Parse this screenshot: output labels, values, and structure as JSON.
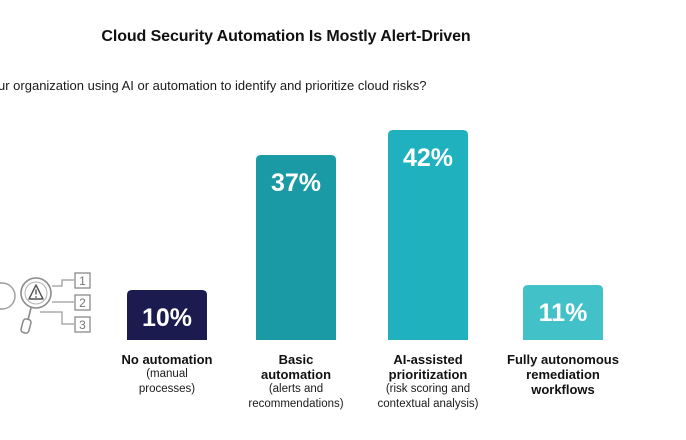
{
  "title": "Cloud Security Automation Is Mostly Alert-Driven",
  "question": "ur organization using AI or automation to identify and prioritize cloud risks?",
  "illustration": {
    "icon": "alert-magnifier-checklist-icon",
    "list_numbers": [
      "1",
      "2",
      "3"
    ]
  },
  "chart_data": {
    "type": "bar",
    "title": "Cloud Security Automation Is Mostly Alert-Driven",
    "categories": [
      {
        "main": "No automation",
        "sub": "(manual\nprocesses)"
      },
      {
        "main": "Basic\nautomation",
        "sub": "(alerts and\nrecommendations)"
      },
      {
        "main": "AI-assisted\nprioritization",
        "sub": "(risk scoring and\ncontextual analysis)"
      },
      {
        "main": "Fully autonomous\nremediation\nworkflows",
        "sub": ""
      }
    ],
    "values": [
      10,
      37,
      42,
      11
    ],
    "value_labels": [
      "10%",
      "37%",
      "42%",
      "11%"
    ],
    "colors": [
      "#1b1b4f",
      "#1a9aa4",
      "#1fb1bd",
      "#43c1c9"
    ],
    "ylim": [
      0,
      42
    ],
    "grid": false,
    "legend": "none",
    "xlabel": "",
    "ylabel": ""
  }
}
